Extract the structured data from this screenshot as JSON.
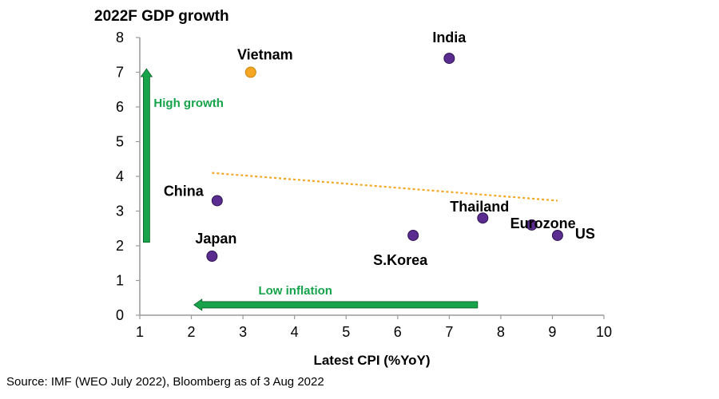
{
  "chart_data": {
    "type": "scatter",
    "title": "2022F GDP growth",
    "xlabel": "Latest CPI (%YoY)",
    "ylabel": "2022F GDP growth",
    "xlim": [
      1,
      10
    ],
    "ylim": [
      0,
      8
    ],
    "x_ticks": [
      "1",
      "2",
      "3",
      "4",
      "5",
      "6",
      "7",
      "8",
      "9",
      "10"
    ],
    "y_ticks": [
      "0",
      "1",
      "2",
      "3",
      "4",
      "5",
      "6",
      "7",
      "8"
    ],
    "grid": false,
    "points": [
      {
        "label": "India",
        "x": 7.0,
        "y": 7.4,
        "highlight": false
      },
      {
        "label": "Vietnam",
        "x": 3.15,
        "y": 7.0,
        "highlight": true
      },
      {
        "label": "China",
        "x": 2.5,
        "y": 3.3,
        "highlight": false
      },
      {
        "label": "Japan",
        "x": 2.4,
        "y": 1.7,
        "highlight": false
      },
      {
        "label": "S.Korea",
        "x": 6.3,
        "y": 2.3,
        "highlight": false
      },
      {
        "label": "Thailand",
        "x": 7.65,
        "y": 2.8,
        "highlight": false
      },
      {
        "label": "Eurozone",
        "x": 8.6,
        "y": 2.6,
        "highlight": false
      },
      {
        "label": "US",
        "x": 9.1,
        "y": 2.3,
        "highlight": false
      }
    ],
    "trendline": {
      "x": [
        2.4,
        9.1
      ],
      "y": [
        4.1,
        3.3
      ],
      "style": "dotted"
    },
    "annotations": [
      {
        "text": "High growth",
        "direction": "up",
        "from": {
          "x": 1.13,
          "y": 2.1
        },
        "to": {
          "x": 1.13,
          "y": 7.1
        }
      },
      {
        "text": "Low inflation",
        "direction": "left",
        "from": {
          "x": 7.55,
          "y": 0.3
        },
        "to": {
          "x": 2.05,
          "y": 0.3
        }
      }
    ]
  },
  "colors": {
    "point": "#5B2C8F",
    "highlight": "#F5A623",
    "trendline": "#F5A623",
    "arrow": "#16A34A",
    "arrow_text": "#16A34A",
    "axis": "#9a9a9a",
    "text": "#000000"
  },
  "source": "Source: IMF (WEO July 2022), Bloomberg as of 3 Aug 2022"
}
